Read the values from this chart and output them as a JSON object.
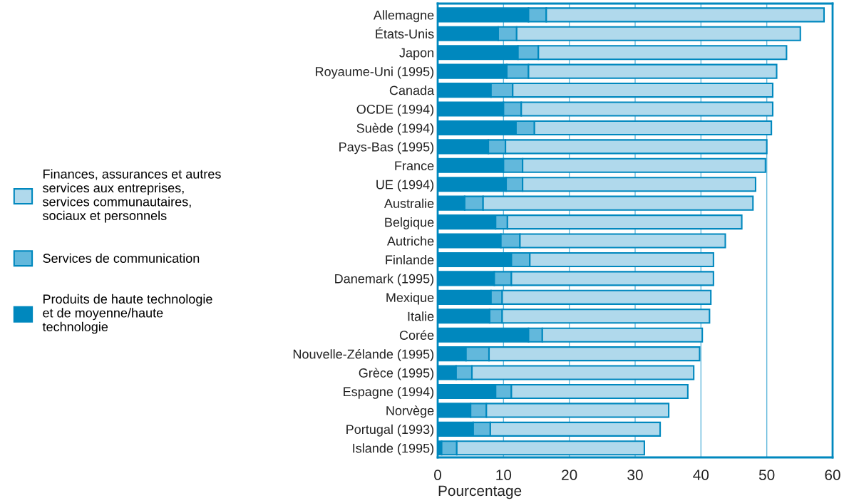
{
  "chart_data": {
    "type": "bar",
    "orientation": "horizontal",
    "stacked": true,
    "xlabel": "Pourcentage",
    "categories": [
      "Allemagne",
      "États-Unis",
      "Japon",
      "Royaume-Uni (1995)",
      "Canada",
      "OCDE (1994)",
      "Suède (1994)",
      "Pays-Bas (1995)",
      "France",
      "UE (1994)",
      "Australie",
      "Belgique",
      "Autriche",
      "Finlande",
      "Danemark (1995)",
      "Mexique",
      "Italie",
      "Corée",
      "Nouvelle-Zélande (1995)",
      "Grèce (1995)",
      "Espagne (1994)",
      "Norvège",
      "Portugal (1993)",
      "Islande (1995)"
    ],
    "series": [
      {
        "name": "Produits de haute technologie et de moyenne/haute technologie",
        "color": "#0088be",
        "values": [
          13.8,
          9.2,
          12.2,
          10.5,
          8.1,
          10.0,
          11.9,
          7.7,
          10.0,
          10.4,
          4.1,
          8.8,
          9.6,
          11.2,
          8.6,
          8.1,
          7.9,
          13.8,
          4.3,
          2.8,
          8.8,
          5.0,
          5.4,
          0.6
        ]
      },
      {
        "name": "Services de communication",
        "color": "#62b8dc",
        "values": [
          2.7,
          2.8,
          3.1,
          3.3,
          3.3,
          2.7,
          2.8,
          2.6,
          2.9,
          2.5,
          2.8,
          1.8,
          2.9,
          2.8,
          2.6,
          1.7,
          1.9,
          2.1,
          3.5,
          2.4,
          2.4,
          2.4,
          2.6,
          2.3
        ]
      },
      {
        "name": "Finances, assurances et autres services aux entreprises, services communautaires, sociaux et personnels",
        "color": "#b0d9ec",
        "values": [
          42.2,
          43.1,
          37.7,
          37.7,
          39.5,
          38.2,
          36.0,
          39.7,
          36.9,
          35.4,
          41.0,
          35.6,
          31.2,
          27.9,
          30.7,
          31.7,
          31.5,
          24.3,
          32.0,
          33.7,
          26.8,
          27.7,
          25.8,
          28.5
        ]
      }
    ],
    "xlim": [
      0,
      60
    ],
    "xticks": [
      0,
      10,
      20,
      30,
      40,
      50,
      60
    ],
    "grid": "x",
    "legend": "left"
  }
}
